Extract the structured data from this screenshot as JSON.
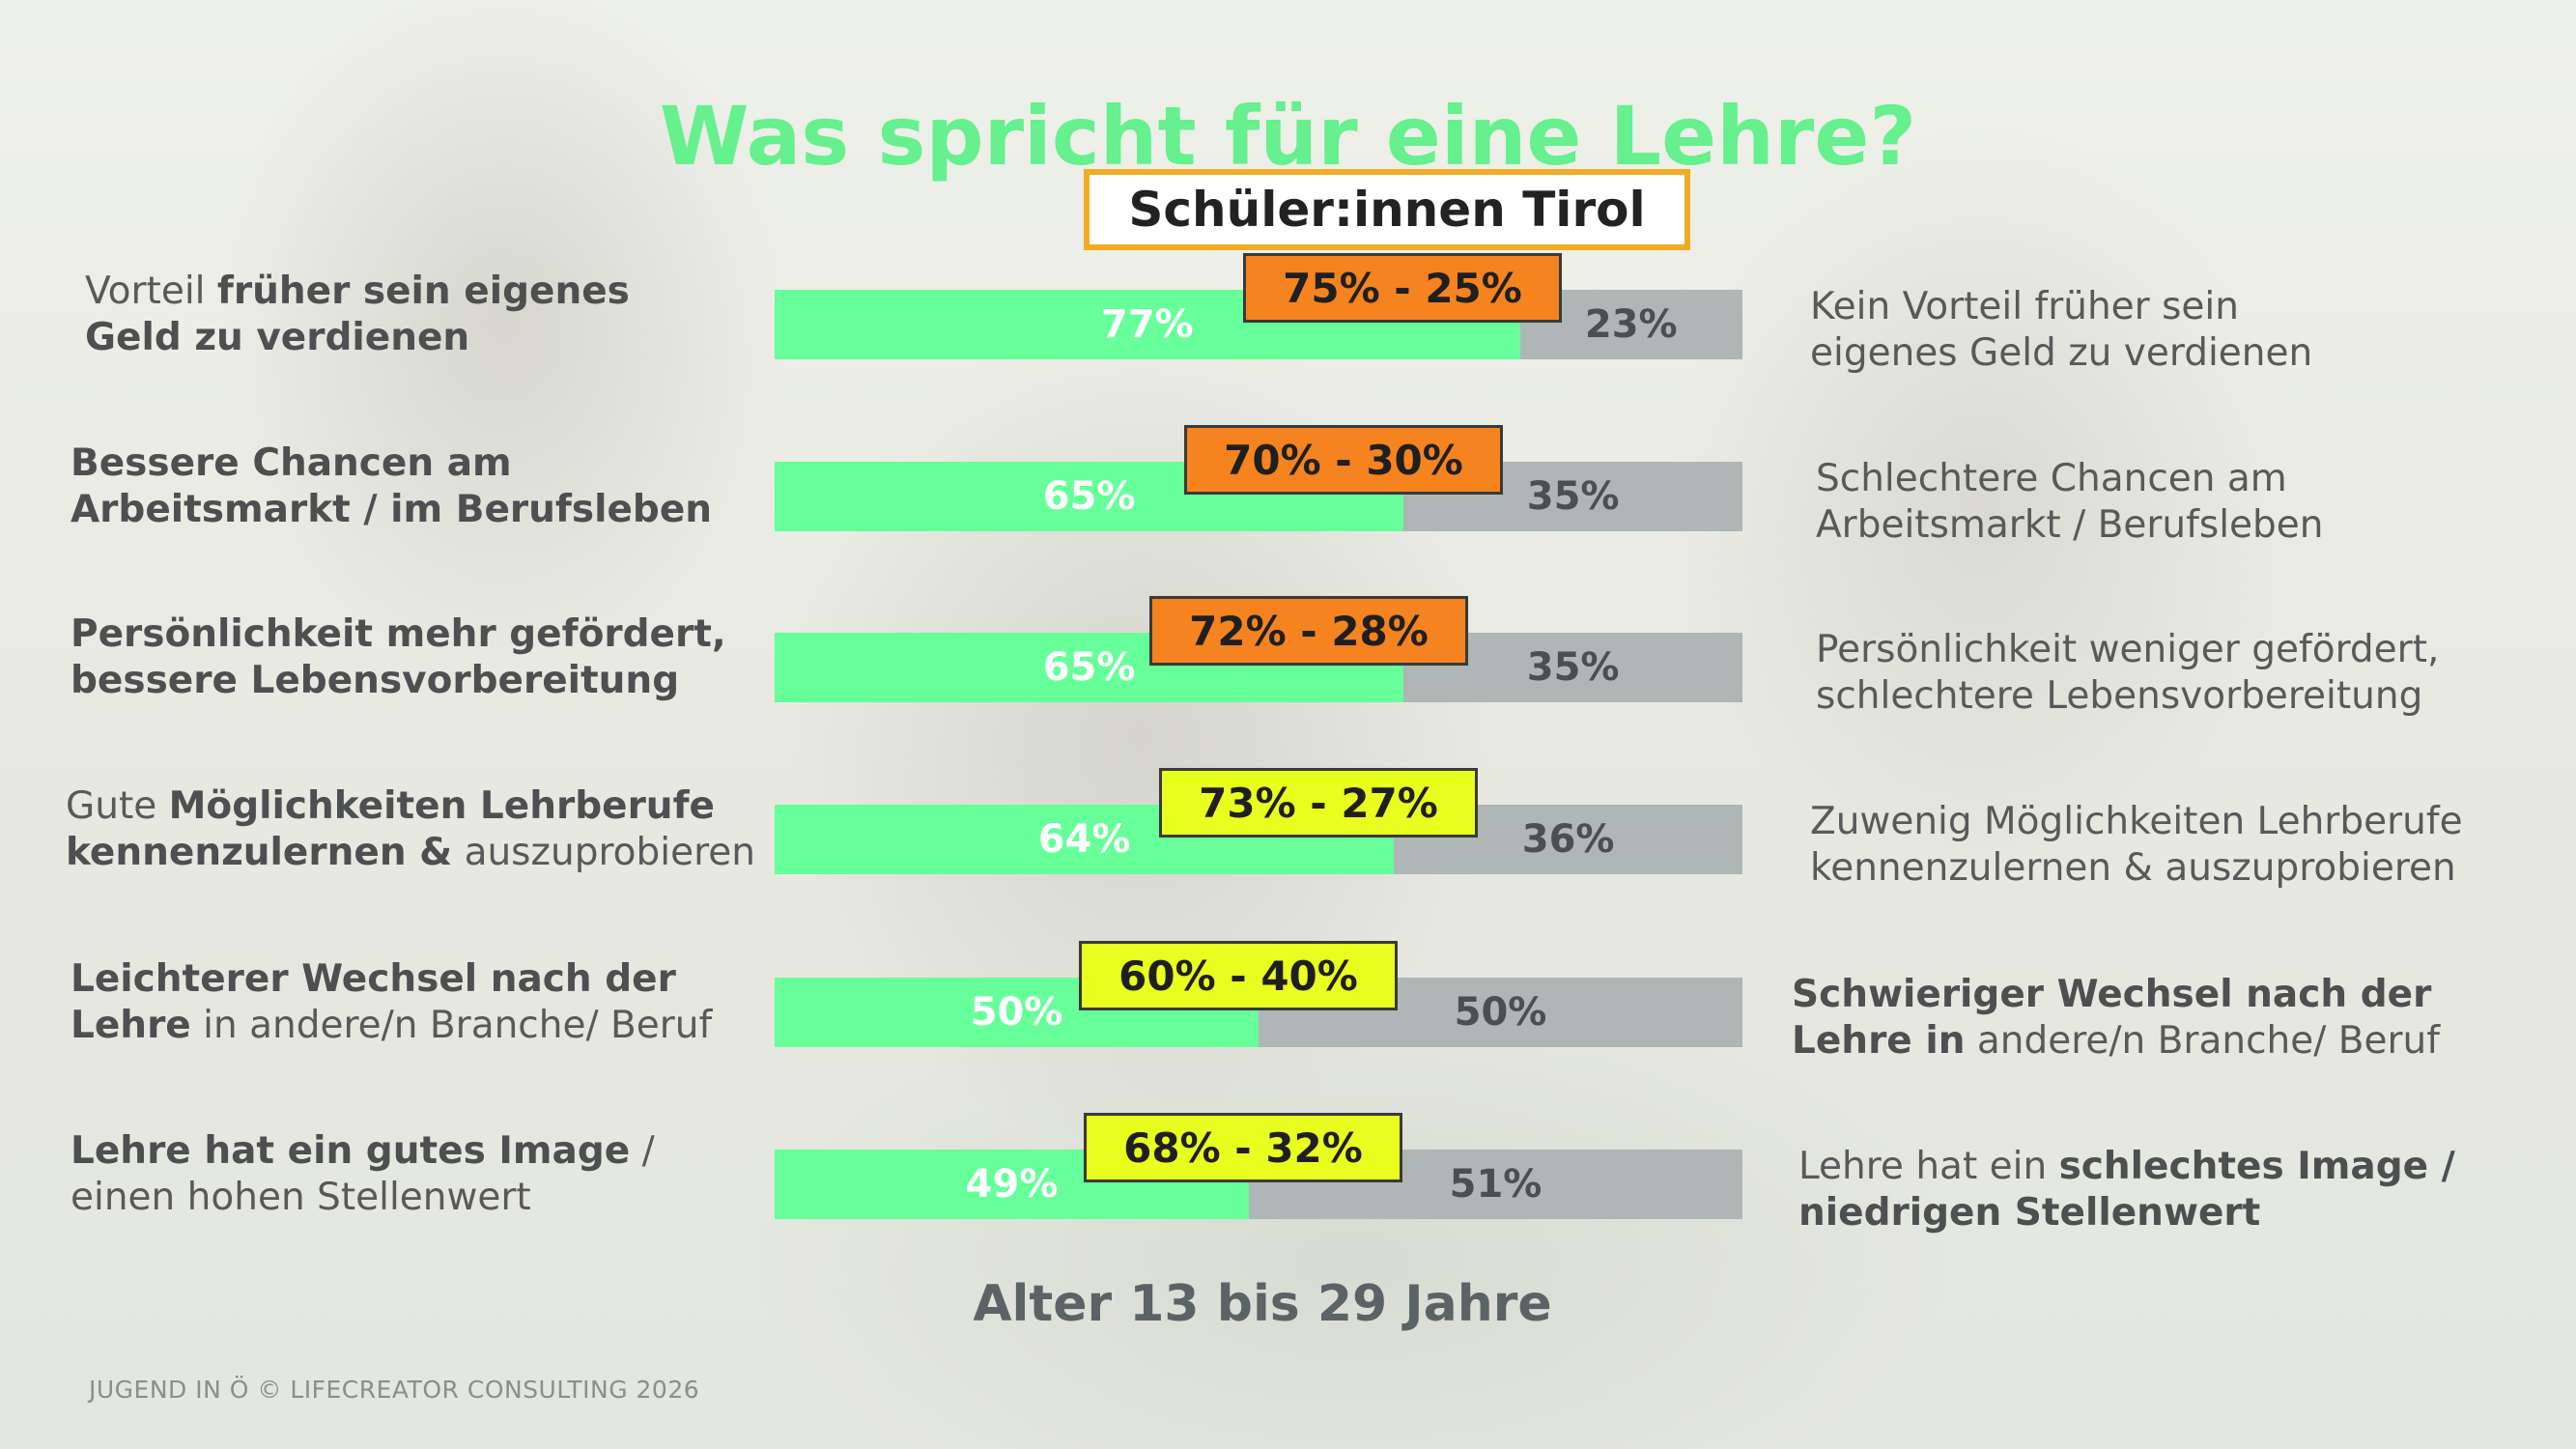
{
  "chart_data": {
    "type": "bar",
    "stacked": true,
    "orientation": "horizontal",
    "title": "Was spricht für eine Lehre?",
    "region": "Schüler:innen Tirol",
    "subtitle": "Alter 13 bis 29 Jahre",
    "colors": {
      "positive": "#66ff99",
      "negative": "#aeb6b6",
      "ratio_orange": "#f5831f",
      "ratio_yellow": "#e9ff1f",
      "title": "#66f08e",
      "region_border": "#f0ac25"
    },
    "rows": [
      {
        "left_parts": [
          {
            "t": "Vorteil ",
            "b": false
          },
          {
            "t": "früher sein eigenes",
            "b": true
          },
          {
            "br": true
          },
          {
            "t": "Geld zu verdienen",
            "b": true
          }
        ],
        "right_parts": [
          {
            "t": "Kein Vorteil früher sein",
            "b": false
          },
          {
            "br": true
          },
          {
            "t": "eigenes Geld zu verdienen",
            "b": false
          }
        ],
        "yes": 77,
        "no": 23,
        "yes_label": "77%",
        "no_label": "23%",
        "ratio_label": "75% - 25%",
        "ratio_color": "orange"
      },
      {
        "left_parts": [
          {
            "t": "Bessere Chancen am",
            "b": true
          },
          {
            "br": true
          },
          {
            "t": "Arbeitsmarkt / im Berufsleben",
            "b": true
          }
        ],
        "right_parts": [
          {
            "t": "Schlechtere Chancen am",
            "b": false
          },
          {
            "br": true
          },
          {
            "t": "Arbeitsmarkt / Berufsleben",
            "b": false
          }
        ],
        "yes": 65,
        "no": 35,
        "yes_label": "65%",
        "no_label": "35%",
        "ratio_label": "70% - 30%",
        "ratio_color": "orange"
      },
      {
        "left_parts": [
          {
            "t": "Persönlichkeit mehr gefördert,",
            "b": true
          },
          {
            "br": true
          },
          {
            "t": "bessere Lebensvorbereitung",
            "b": true
          }
        ],
        "right_parts": [
          {
            "t": "Persönlichkeit weniger gefördert,",
            "b": false
          },
          {
            "br": true
          },
          {
            "t": "schlechtere Lebensvorbereitung",
            "b": false
          }
        ],
        "yes": 65,
        "no": 35,
        "yes_label": "65%",
        "no_label": "35%",
        "ratio_label": "72% - 28%",
        "ratio_color": "orange"
      },
      {
        "left_parts": [
          {
            "t": "Gute ",
            "b": false
          },
          {
            "t": "Möglichkeiten Lehrberufe",
            "b": true
          },
          {
            "br": true
          },
          {
            "t": "kennenzulernen &",
            "b": true
          },
          {
            "t": " auszuprobieren",
            "b": false
          }
        ],
        "right_parts": [
          {
            "t": "Zuwenig Möglichkeiten Lehrberufe",
            "b": false
          },
          {
            "br": true
          },
          {
            "t": "kennenzulernen & auszuprobieren",
            "b": false
          }
        ],
        "yes": 64,
        "no": 36,
        "yes_label": "64%",
        "no_label": "36%",
        "ratio_label": "73% - 27%",
        "ratio_color": "yellow"
      },
      {
        "left_parts": [
          {
            "t": "Leichterer Wechsel nach der",
            "b": true
          },
          {
            "br": true
          },
          {
            "t": "Lehre",
            "b": true
          },
          {
            "t": " in andere/n Branche/ Beruf",
            "b": false
          }
        ],
        "right_parts": [
          {
            "t": "Schwieriger Wechsel nach der",
            "b": true
          },
          {
            "br": true
          },
          {
            "t": "Lehre in",
            "b": true
          },
          {
            "t": " andere/n Branche/ Beruf",
            "b": false
          }
        ],
        "yes": 50,
        "no": 50,
        "yes_label": "50%",
        "no_label": "50%",
        "ratio_label": "60% - 40%",
        "ratio_color": "yellow"
      },
      {
        "left_parts": [
          {
            "t": "Lehre hat ein gutes Image",
            "b": true
          },
          {
            "t": " /",
            "b": false
          },
          {
            "br": true
          },
          {
            "t": "einen hohen Stellenwert",
            "b": false
          }
        ],
        "right_parts": [
          {
            "t": "Lehre hat ein ",
            "b": false
          },
          {
            "t": "schlechtes Image /",
            "b": true
          },
          {
            "br": true
          },
          {
            "t": "niedrigen Stellenwert",
            "b": true
          }
        ],
        "yes": 49,
        "no": 51,
        "yes_label": "49%",
        "no_label": "51%",
        "ratio_label": "68% - 32%",
        "ratio_color": "yellow"
      }
    ]
  },
  "footer": "JUGEND IN Ö © LIFECREATOR CONSULTING 2026"
}
